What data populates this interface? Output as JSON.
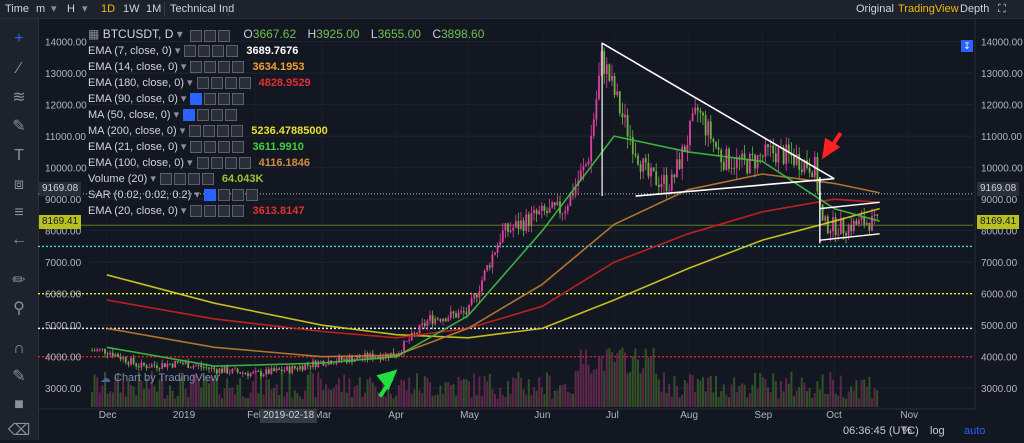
{
  "topbar": {
    "time_label": "Time",
    "minutes_label": "m",
    "hours_label": "H",
    "day_label": "1D",
    "week_label": "1W",
    "month_label": "1M",
    "indicators_label": "Technical Ind",
    "original_label": "Original",
    "tradingview_label": "TradingView",
    "depth_label": "Depth"
  },
  "header": {
    "symbol": "BTCUSDT, D",
    "open_label": "O",
    "open": "3667.62",
    "high_label": "H",
    "high": "3925.00",
    "low_label": "L",
    "low": "3655.00",
    "close_label": "C",
    "close": "3898.60"
  },
  "indicators": [
    {
      "name": "EMA (7, close, 0)",
      "value": "3689.7676",
      "color": "#ffffff"
    },
    {
      "name": "EMA (14, close, 0)",
      "value": "3634.1953",
      "color": "#f0a030"
    },
    {
      "name": "EMA (180, close, 0)",
      "value": "4828.9529",
      "color": "#e03030"
    },
    {
      "name": "EMA (90, close, 0)",
      "value": "",
      "color": "#ffffff"
    },
    {
      "name": "MA (50, close, 0)",
      "value": "",
      "color": "#ffffff"
    },
    {
      "name": "MA (200, close, 0)",
      "value": "5236.47885000",
      "color": "#e8e030"
    },
    {
      "name": "EMA (21, close, 0)",
      "value": "3611.9910",
      "color": "#40d040"
    },
    {
      "name": "EMA (100, close, 0)",
      "value": "4116.1846",
      "color": "#d09040"
    },
    {
      "name": "Volume (20)",
      "value": "64.043K",
      "color": "#a0c030"
    },
    {
      "name": "SAR (0.02, 0.02, 0.2)",
      "value": "",
      "color": "#ffffff"
    },
    {
      "name": "EMA (20, close, 0)",
      "value": "3613.8147",
      "color": "#e03030"
    }
  ],
  "watermark": "Chart by TradingView",
  "price_tags": {
    "left_upper": "9169.08",
    "left_lower": "8169.41",
    "right_upper": "9169.08",
    "right_lower": "8169.41"
  },
  "bottom": {
    "time": "06:36:45 (UTC)",
    "percent": "%",
    "log": "log",
    "auto": "auto",
    "date_marker": "2019-02-18"
  },
  "colors": {
    "background": "#131722",
    "up_candle": "#e040a0",
    "down_candle": "#70b040",
    "ema180": "#d02020",
    "ma200": "#d8d020",
    "ema100": "#c08030",
    "ema21": "#40c040"
  },
  "icons": [
    "crosshair-icon",
    "trend-line-icon",
    "pitchfork-icon",
    "brush-icon",
    "text-icon",
    "pattern-icon",
    "prediction-icon",
    "measure-icon",
    "back-arrow-icon",
    "ruler-icon",
    "zoom-icon",
    "magnet-icon",
    "lock-icon",
    "eye-icon",
    "trash-icon"
  ],
  "chart_data": {
    "type": "line",
    "title": "BTCUSDT, D",
    "x_ticks": [
      "Dec",
      "2019",
      "Feb",
      "Mar",
      "Apr",
      "May",
      "Jun",
      "Jul",
      "Aug",
      "Sep",
      "Oct",
      "Nov"
    ],
    "y_ticks": [
      3000,
      4000,
      5000,
      6000,
      7000,
      8000,
      9000,
      10000,
      11000,
      12000,
      13000,
      14000
    ],
    "ylim": [
      2500,
      14400
    ],
    "log_scale": false,
    "horizontal_levels": [
      {
        "value": 9169.08,
        "style": "grey-dotted"
      },
      {
        "value": 8169.41,
        "style": "solid-dim"
      },
      {
        "value": 7500,
        "style": "cyan-dotted"
      },
      {
        "value": 6000,
        "style": "yellow-dotted"
      },
      {
        "value": 4900,
        "style": "white-dotted"
      },
      {
        "value": 4000,
        "style": "red-dotted"
      }
    ],
    "series": [
      {
        "name": "Price",
        "x": [
          "2018-12-01",
          "2018-12-15",
          "2019-01-01",
          "2019-01-15",
          "2019-02-01",
          "2019-02-15",
          "2019-03-01",
          "2019-03-15",
          "2019-04-01",
          "2019-04-15",
          "2019-05-01",
          "2019-05-15",
          "2019-05-30",
          "2019-06-10",
          "2019-06-20",
          "2019-06-26",
          "2019-07-05",
          "2019-07-15",
          "2019-07-25",
          "2019-08-05",
          "2019-08-15",
          "2019-08-25",
          "2019-09-05",
          "2019-09-15",
          "2019-09-23",
          "2019-09-26",
          "2019-10-05",
          "2019-10-15",
          "2019-10-20"
        ],
        "values": [
          4200,
          3700,
          3800,
          3600,
          3450,
          3600,
          3850,
          3950,
          4100,
          5200,
          5400,
          7900,
          8500,
          8700,
          10200,
          13500,
          11500,
          9700,
          9500,
          11800,
          10300,
          10100,
          10500,
          10300,
          10000,
          8200,
          8100,
          8300,
          8200
        ]
      },
      {
        "name": "MA (200, close, 0)",
        "x": [
          "2018-12-01",
          "2019-01-15",
          "2019-03-01",
          "2019-04-01",
          "2019-05-01",
          "2019-06-01",
          "2019-07-01",
          "2019-08-01",
          "2019-09-01",
          "2019-10-01",
          "2019-10-20"
        ],
        "values": [
          6600,
          5700,
          5000,
          4700,
          4600,
          4900,
          5800,
          6800,
          7700,
          8300,
          8700
        ]
      },
      {
        "name": "EMA (180, close, 0)",
        "x": [
          "2018-12-01",
          "2019-01-15",
          "2019-03-01",
          "2019-04-01",
          "2019-05-01",
          "2019-06-01",
          "2019-07-01",
          "2019-08-01",
          "2019-09-01",
          "2019-10-01",
          "2019-10-20"
        ],
        "values": [
          5800,
          5200,
          4800,
          4600,
          4900,
          5600,
          7000,
          7900,
          8600,
          9000,
          8900
        ]
      },
      {
        "name": "EMA (100, close, 0)",
        "x": [
          "2018-12-01",
          "2019-01-15",
          "2019-03-01",
          "2019-04-01",
          "2019-05-01",
          "2019-06-01",
          "2019-07-01",
          "2019-08-01",
          "2019-09-01",
          "2019-10-01",
          "2019-10-20"
        ],
        "values": [
          4900,
          4300,
          4000,
          4050,
          4900,
          6300,
          8200,
          9300,
          9800,
          9500,
          9200
        ]
      },
      {
        "name": "EMA (21, close, 0)",
        "x": [
          "2018-12-01",
          "2019-01-15",
          "2019-03-01",
          "2019-04-01",
          "2019-05-01",
          "2019-06-01",
          "2019-07-01",
          "2019-08-01",
          "2019-09-01",
          "2019-10-01",
          "2019-10-20"
        ],
        "values": [
          4300,
          3700,
          3800,
          4000,
          5300,
          8000,
          11000,
          10500,
          10200,
          8700,
          8300
        ]
      }
    ]
  }
}
